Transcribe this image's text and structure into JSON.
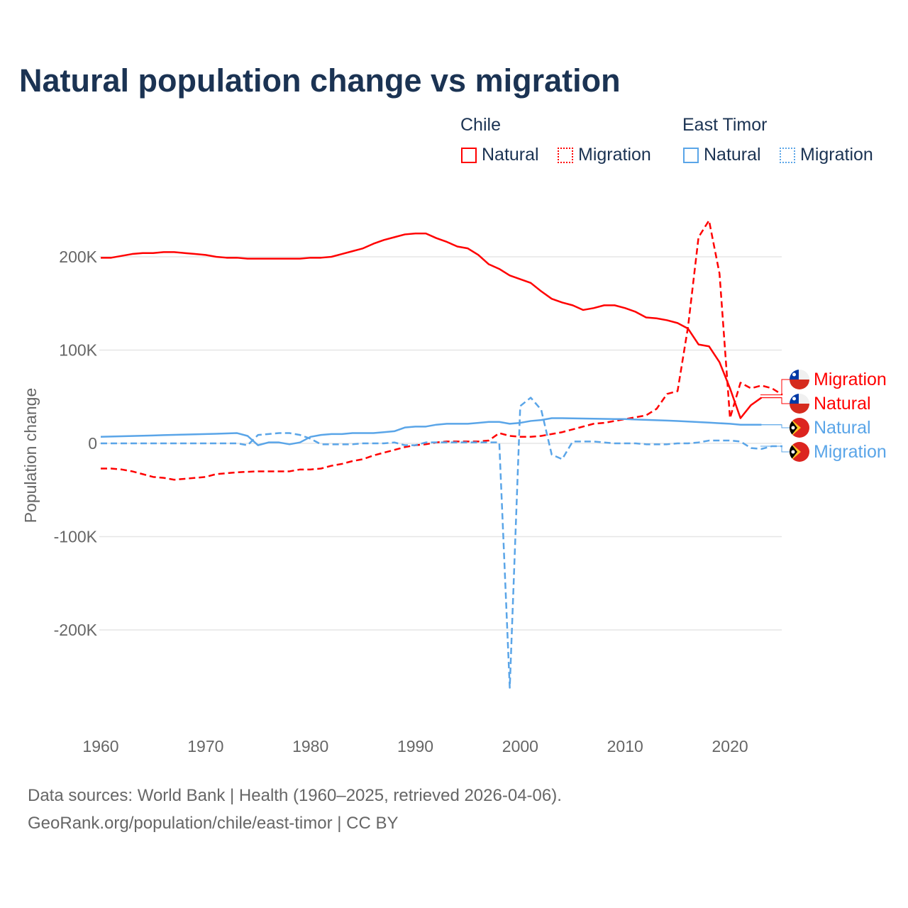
{
  "title": "Natural population change vs migration",
  "legend": {
    "groups": [
      {
        "name": "Chile",
        "items": [
          "Natural",
          "Migration"
        ]
      },
      {
        "name": "East Timor",
        "items": [
          "Natural",
          "Migration"
        ]
      }
    ]
  },
  "footer": {
    "line1": "Data sources: World Bank | Health (1960–2025, retrieved 2026-04-06).",
    "line2": "GeoRank.org/population/chile/east-timor | CC BY"
  },
  "colors": {
    "chile": "#ff0000",
    "east_timor": "#5aa5e8",
    "text": "#1b3353"
  },
  "chart_data": {
    "type": "line",
    "title": "Natural population change vs migration",
    "xlabel": "",
    "ylabel": "Population change",
    "xlim": [
      1960,
      2025
    ],
    "ylim": [
      -270000,
      245000
    ],
    "xticks": [
      1960,
      1970,
      1980,
      1990,
      2000,
      2010,
      2020
    ],
    "xtick_labels": [
      "1960",
      "1970",
      "1980",
      "1990",
      "2000",
      "2010",
      "2020"
    ],
    "yticks": [
      200000,
      100000,
      0,
      -100000,
      -200000
    ],
    "ytick_labels": [
      "200K",
      "100K",
      "0",
      "-100K",
      "-200K"
    ],
    "grid": true,
    "legend_position": "top-right",
    "series": [
      {
        "name": "Chile Natural",
        "country": "Chile",
        "kind": "Natural",
        "style": "solid",
        "color": "#ff0000",
        "label": "Natural",
        "start": 1960,
        "values": [
          199000,
          199000,
          201000,
          203000,
          204000,
          204000,
          205000,
          205000,
          204000,
          203000,
          202000,
          200000,
          199000,
          199000,
          198000,
          198000,
          198000,
          198000,
          198000,
          198000,
          199000,
          199000,
          200000,
          203000,
          206000,
          209000,
          214000,
          218000,
          221000,
          224000,
          225000,
          225000,
          220000,
          216000,
          211000,
          209000,
          202000,
          192000,
          187000,
          180000,
          176000,
          172000,
          163000,
          155000,
          151000,
          148000,
          143000,
          145000,
          148000,
          148000,
          145000,
          141000,
          135000,
          134000,
          132000,
          129000,
          123000,
          106000,
          104000,
          87000,
          59000,
          27000,
          41000,
          49000
        ]
      },
      {
        "name": "Chile Migration",
        "country": "Chile",
        "kind": "Migration",
        "style": "dashed",
        "color": "#ff0000",
        "label": "Migration",
        "start": 1960,
        "values": [
          -27000,
          -27000,
          -28000,
          -30000,
          -33000,
          -36000,
          -37000,
          -39000,
          -38000,
          -37000,
          -36000,
          -33000,
          -32000,
          -31000,
          -30500,
          -30000,
          -30000,
          -30000,
          -30000,
          -28000,
          -28000,
          -27000,
          -24000,
          -22000,
          -19000,
          -17000,
          -13000,
          -10000,
          -7000,
          -4000,
          -2000,
          -1000,
          1000,
          2000,
          2000,
          2000,
          2000,
          3000,
          11000,
          8000,
          7000,
          7000,
          8000,
          10000,
          12000,
          15000,
          18000,
          21000,
          22000,
          24000,
          26000,
          28000,
          30000,
          37000,
          53000,
          56000,
          125000,
          221000,
          239000,
          182000,
          27000,
          65000,
          59000,
          62000,
          59000,
          52000
        ]
      },
      {
        "name": "East Timor Natural",
        "country": "East Timor",
        "kind": "Natural",
        "style": "solid",
        "color": "#5aa5e8",
        "label": "Natural",
        "start": 1960,
        "values": [
          7000,
          7300,
          7600,
          7900,
          8200,
          8500,
          8800,
          9100,
          9400,
          9700,
          10000,
          10300,
          10600,
          11000,
          8000,
          -2000,
          1000,
          1000,
          -1000,
          1000,
          7000,
          9000,
          10000,
          10000,
          11000,
          11000,
          11000,
          12000,
          13000,
          17000,
          18000,
          18000,
          20000,
          21000,
          21000,
          21000,
          22000,
          23000,
          23000,
          21000,
          22000,
          24000,
          25000,
          27000,
          27000,
          26800,
          26600,
          26400,
          26200,
          26000,
          26000,
          25600,
          25200,
          24800,
          24400,
          24000,
          23400,
          22800,
          22200,
          21600,
          21000,
          20000,
          20000,
          20000
        ]
      },
      {
        "name": "East Timor Migration",
        "country": "East Timor",
        "kind": "Migration",
        "style": "dashed",
        "color": "#5aa5e8",
        "label": "Migration",
        "start": 1960,
        "values": [
          0,
          0,
          0,
          0,
          0,
          0,
          0,
          0,
          0,
          0,
          0,
          0,
          0,
          0,
          -2000,
          9000,
          10000,
          11000,
          11000,
          9000,
          5000,
          -1000,
          -1000,
          -1000,
          -1000,
          0,
          0,
          0,
          1000,
          -2000,
          -2000,
          1000,
          1000,
          1000,
          1000,
          1000,
          1000,
          1000,
          1000,
          -262000,
          40000,
          49000,
          36000,
          -12000,
          -17000,
          2000,
          2000,
          2000,
          1000,
          0,
          0,
          0,
          -1000,
          -1000,
          -1000,
          0,
          0,
          1000,
          3000,
          3000,
          3000,
          2000,
          -5000,
          -6000,
          -3000,
          -3000
        ]
      }
    ]
  }
}
